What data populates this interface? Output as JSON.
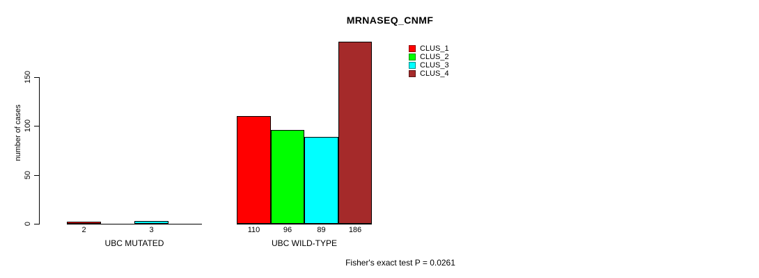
{
  "chart_data": {
    "type": "bar",
    "title": "MRNASEQ_CNMF",
    "ylabel": "number of cases",
    "yticks": [
      0,
      50,
      100,
      150
    ],
    "ylim": [
      0,
      186
    ],
    "grid": false,
    "legend_position": "topright",
    "categories": [
      "UBC MUTATED",
      "UBC WILD-TYPE"
    ],
    "series": [
      {
        "name": "CLUS_1",
        "color": "#ff0000",
        "values": [
          2,
          110
        ]
      },
      {
        "name": "CLUS_2",
        "color": "#00ff00",
        "values": [
          0,
          96
        ]
      },
      {
        "name": "CLUS_3",
        "color": "#00ffff",
        "values": [
          3,
          89
        ]
      },
      {
        "name": "CLUS_4",
        "color": "#a52a2a",
        "values": [
          0,
          186
        ]
      }
    ],
    "bar_value_labels_visible": [
      "2",
      "3",
      "110",
      "96",
      "89",
      "186"
    ],
    "footnote": "Fisher's exact test P = 0.0261"
  }
}
